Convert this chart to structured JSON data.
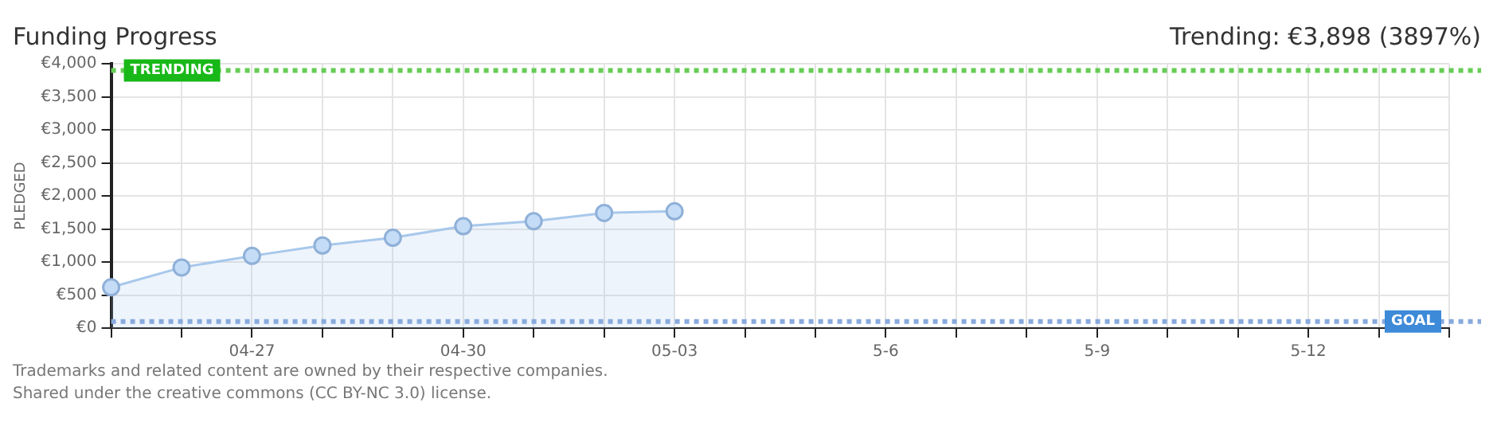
{
  "chart_data": {
    "type": "area",
    "title": "Funding Progress",
    "ylabel": "PLEDGED",
    "annotations": [
      "Trending: €3,898 (3897%)",
      "Trademarks and related content are owned by their respective companies.",
      "Shared under the creative commons (CC BY-NC 3.0) license."
    ],
    "categories": [
      null,
      null,
      "04-27",
      null,
      null,
      "04-30",
      null,
      null,
      "05-03",
      null,
      null,
      "5-6",
      null,
      null,
      "5-9",
      null,
      null,
      "5-12",
      null,
      null
    ],
    "series": [
      {
        "color": "#a8c8ec",
        "values": [
          617,
          917,
          1092,
          1250,
          1367,
          1542,
          1617,
          1742,
          1767,
          null,
          null,
          null,
          null,
          null,
          null,
          null,
          null,
          null,
          null,
          null
        ]
      }
    ],
    "ylim": [
      0,
      4000
    ],
    "yticks": [
      {
        "value": 0,
        "label": "€0"
      },
      {
        "value": 500,
        "label": "€500"
      },
      {
        "value": 1000,
        "label": "€1,000"
      },
      {
        "value": 1500,
        "label": "€1,500"
      },
      {
        "value": 2000,
        "label": "€2,000"
      },
      {
        "value": 2500,
        "label": "€2,500"
      },
      {
        "value": 3000,
        "label": "€3,000"
      },
      {
        "value": 3500,
        "label": "€3,500"
      },
      {
        "value": 4000,
        "label": "€4,000"
      }
    ],
    "ref_lines": [
      {
        "axis": "y",
        "value": 3898,
        "label": "TRENDING",
        "color": "#66cc55",
        "line_style": "dotted"
      },
      {
        "axis": "y",
        "value": 100,
        "label": "GOAL",
        "color": "#88aadd",
        "line_style": "dotted"
      }
    ],
    "grid": true,
    "marker": "circle",
    "legend": false
  }
}
